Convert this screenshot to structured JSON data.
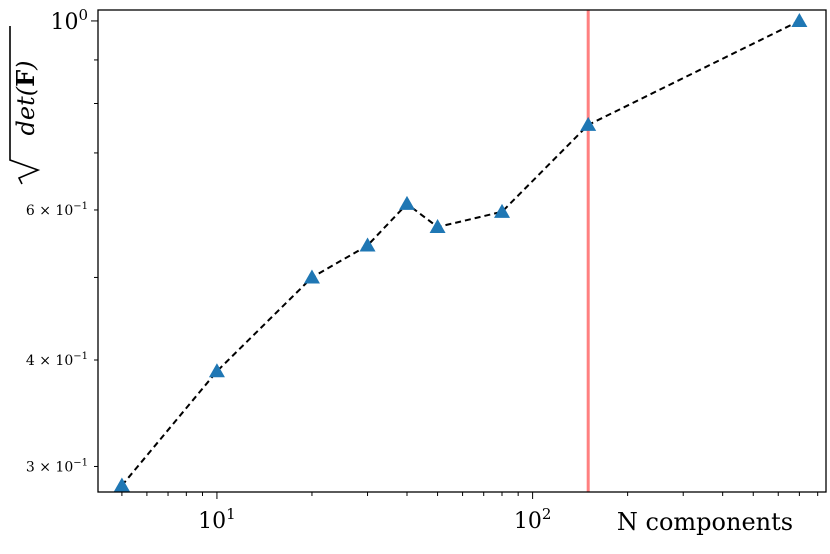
{
  "chart_data": {
    "type": "line",
    "title": "",
    "xlabel": "N components",
    "ylabel": "√det(F)",
    "x_scale": "log",
    "y_scale": "log",
    "xlim": [
      4.2,
      850
    ],
    "ylim": [
      0.28,
      1.03
    ],
    "grid": false,
    "series": [
      {
        "x": [
          5,
          10,
          20,
          30,
          40,
          50,
          80,
          150,
          700
        ],
        "y": [
          0.285,
          0.388,
          0.5,
          0.545,
          0.61,
          0.573,
          0.597,
          0.755,
          1.0
        ],
        "color": "#1f77b4",
        "marker": "triangle",
        "line_style": "dashed",
        "line_color": "#000000"
      }
    ],
    "vline": {
      "x": 150,
      "color": "#ff8080"
    },
    "x_ticks": [
      {
        "value": 10,
        "base": "10",
        "exp": "1"
      },
      {
        "value": 100,
        "base": "10",
        "exp": "2"
      }
    ],
    "y_ticks": [
      {
        "value": 1.0,
        "base": "10",
        "exp": "0",
        "mantissa": ""
      },
      {
        "value": 0.6,
        "base": "10",
        "exp": "−1",
        "mantissa": "6 × "
      },
      {
        "value": 0.4,
        "base": "10",
        "exp": "−1",
        "mantissa": "4 × "
      },
      {
        "value": 0.3,
        "base": "10",
        "exp": "−1",
        "mantissa": "3 × "
      }
    ]
  }
}
